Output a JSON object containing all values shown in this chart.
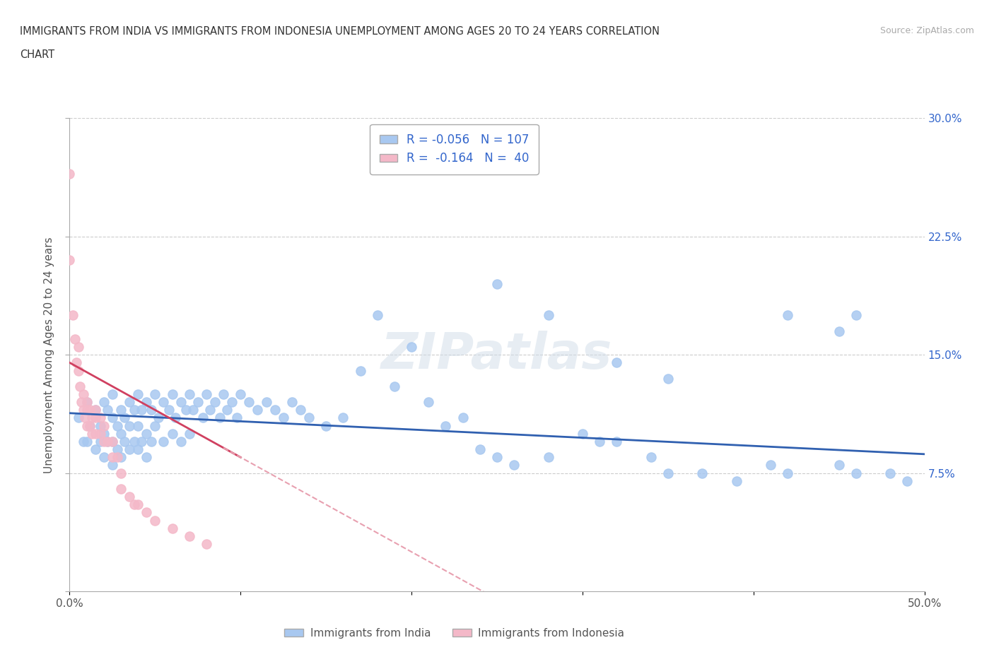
{
  "title_line1": "IMMIGRANTS FROM INDIA VS IMMIGRANTS FROM INDONESIA UNEMPLOYMENT AMONG AGES 20 TO 24 YEARS CORRELATION",
  "title_line2": "CHART",
  "source_text": "Source: ZipAtlas.com",
  "ylabel": "Unemployment Among Ages 20 to 24 years",
  "xlim": [
    0.0,
    0.5
  ],
  "ylim": [
    0.0,
    0.3
  ],
  "xticks": [
    0.0,
    0.1,
    0.2,
    0.3,
    0.4,
    0.5
  ],
  "xticklabels": [
    "0.0%",
    "",
    "",
    "",
    "",
    "50.0%"
  ],
  "yticks": [
    0.0,
    0.075,
    0.15,
    0.225,
    0.3
  ],
  "yticklabels_right": [
    "",
    "7.5%",
    "15.0%",
    "22.5%",
    "30.0%"
  ],
  "india_R": -0.056,
  "india_N": 107,
  "indonesia_R": -0.164,
  "indonesia_N": 40,
  "india_color": "#a8c8f0",
  "indonesia_color": "#f4b8c8",
  "india_line_color": "#3060b0",
  "indonesia_line_color": "#d04060",
  "indonesia_dash_color": "#e8a0b0",
  "legend_india_label": "R = -0.056   N = 107",
  "legend_indo_label": "R =  -0.164   N =  40",
  "bottom_legend_india": "Immigrants from India",
  "bottom_legend_indo": "Immigrants from Indonesia",
  "india_points_x": [
    0.005,
    0.008,
    0.01,
    0.01,
    0.012,
    0.015,
    0.015,
    0.018,
    0.018,
    0.02,
    0.02,
    0.02,
    0.022,
    0.022,
    0.025,
    0.025,
    0.025,
    0.025,
    0.028,
    0.028,
    0.03,
    0.03,
    0.03,
    0.032,
    0.032,
    0.035,
    0.035,
    0.035,
    0.038,
    0.038,
    0.04,
    0.04,
    0.04,
    0.042,
    0.042,
    0.045,
    0.045,
    0.045,
    0.048,
    0.048,
    0.05,
    0.05,
    0.052,
    0.055,
    0.055,
    0.058,
    0.06,
    0.06,
    0.062,
    0.065,
    0.065,
    0.068,
    0.07,
    0.07,
    0.072,
    0.075,
    0.078,
    0.08,
    0.082,
    0.085,
    0.088,
    0.09,
    0.092,
    0.095,
    0.098,
    0.1,
    0.105,
    0.11,
    0.115,
    0.12,
    0.125,
    0.13,
    0.135,
    0.14,
    0.15,
    0.16,
    0.17,
    0.18,
    0.19,
    0.2,
    0.21,
    0.22,
    0.23,
    0.24,
    0.25,
    0.26,
    0.28,
    0.3,
    0.31,
    0.32,
    0.34,
    0.35,
    0.37,
    0.39,
    0.41,
    0.42,
    0.45,
    0.46,
    0.48,
    0.49,
    0.25,
    0.28,
    0.32,
    0.35,
    0.42,
    0.45,
    0.46
  ],
  "india_points_y": [
    0.11,
    0.095,
    0.12,
    0.095,
    0.105,
    0.115,
    0.09,
    0.105,
    0.095,
    0.12,
    0.1,
    0.085,
    0.115,
    0.095,
    0.125,
    0.11,
    0.095,
    0.08,
    0.105,
    0.09,
    0.115,
    0.1,
    0.085,
    0.11,
    0.095,
    0.12,
    0.105,
    0.09,
    0.115,
    0.095,
    0.125,
    0.105,
    0.09,
    0.115,
    0.095,
    0.12,
    0.1,
    0.085,
    0.115,
    0.095,
    0.125,
    0.105,
    0.11,
    0.12,
    0.095,
    0.115,
    0.125,
    0.1,
    0.11,
    0.12,
    0.095,
    0.115,
    0.125,
    0.1,
    0.115,
    0.12,
    0.11,
    0.125,
    0.115,
    0.12,
    0.11,
    0.125,
    0.115,
    0.12,
    0.11,
    0.125,
    0.12,
    0.115,
    0.12,
    0.115,
    0.11,
    0.12,
    0.115,
    0.11,
    0.105,
    0.11,
    0.14,
    0.175,
    0.13,
    0.155,
    0.12,
    0.105,
    0.11,
    0.09,
    0.085,
    0.08,
    0.085,
    0.1,
    0.095,
    0.095,
    0.085,
    0.075,
    0.075,
    0.07,
    0.08,
    0.075,
    0.08,
    0.075,
    0.075,
    0.07,
    0.195,
    0.175,
    0.145,
    0.135,
    0.175,
    0.165,
    0.175
  ],
  "indonesia_points_x": [
    0.0,
    0.0,
    0.002,
    0.003,
    0.004,
    0.005,
    0.005,
    0.006,
    0.007,
    0.008,
    0.008,
    0.009,
    0.01,
    0.01,
    0.01,
    0.012,
    0.012,
    0.013,
    0.013,
    0.015,
    0.015,
    0.015,
    0.018,
    0.018,
    0.02,
    0.02,
    0.022,
    0.025,
    0.025,
    0.028,
    0.03,
    0.03,
    0.035,
    0.038,
    0.04,
    0.045,
    0.05,
    0.06,
    0.07,
    0.08
  ],
  "indonesia_points_y": [
    0.265,
    0.21,
    0.175,
    0.16,
    0.145,
    0.14,
    0.155,
    0.13,
    0.12,
    0.125,
    0.115,
    0.11,
    0.12,
    0.115,
    0.105,
    0.115,
    0.105,
    0.11,
    0.1,
    0.115,
    0.11,
    0.1,
    0.11,
    0.1,
    0.105,
    0.095,
    0.095,
    0.095,
    0.085,
    0.085,
    0.075,
    0.065,
    0.06,
    0.055,
    0.055,
    0.05,
    0.045,
    0.04,
    0.035,
    0.03
  ]
}
